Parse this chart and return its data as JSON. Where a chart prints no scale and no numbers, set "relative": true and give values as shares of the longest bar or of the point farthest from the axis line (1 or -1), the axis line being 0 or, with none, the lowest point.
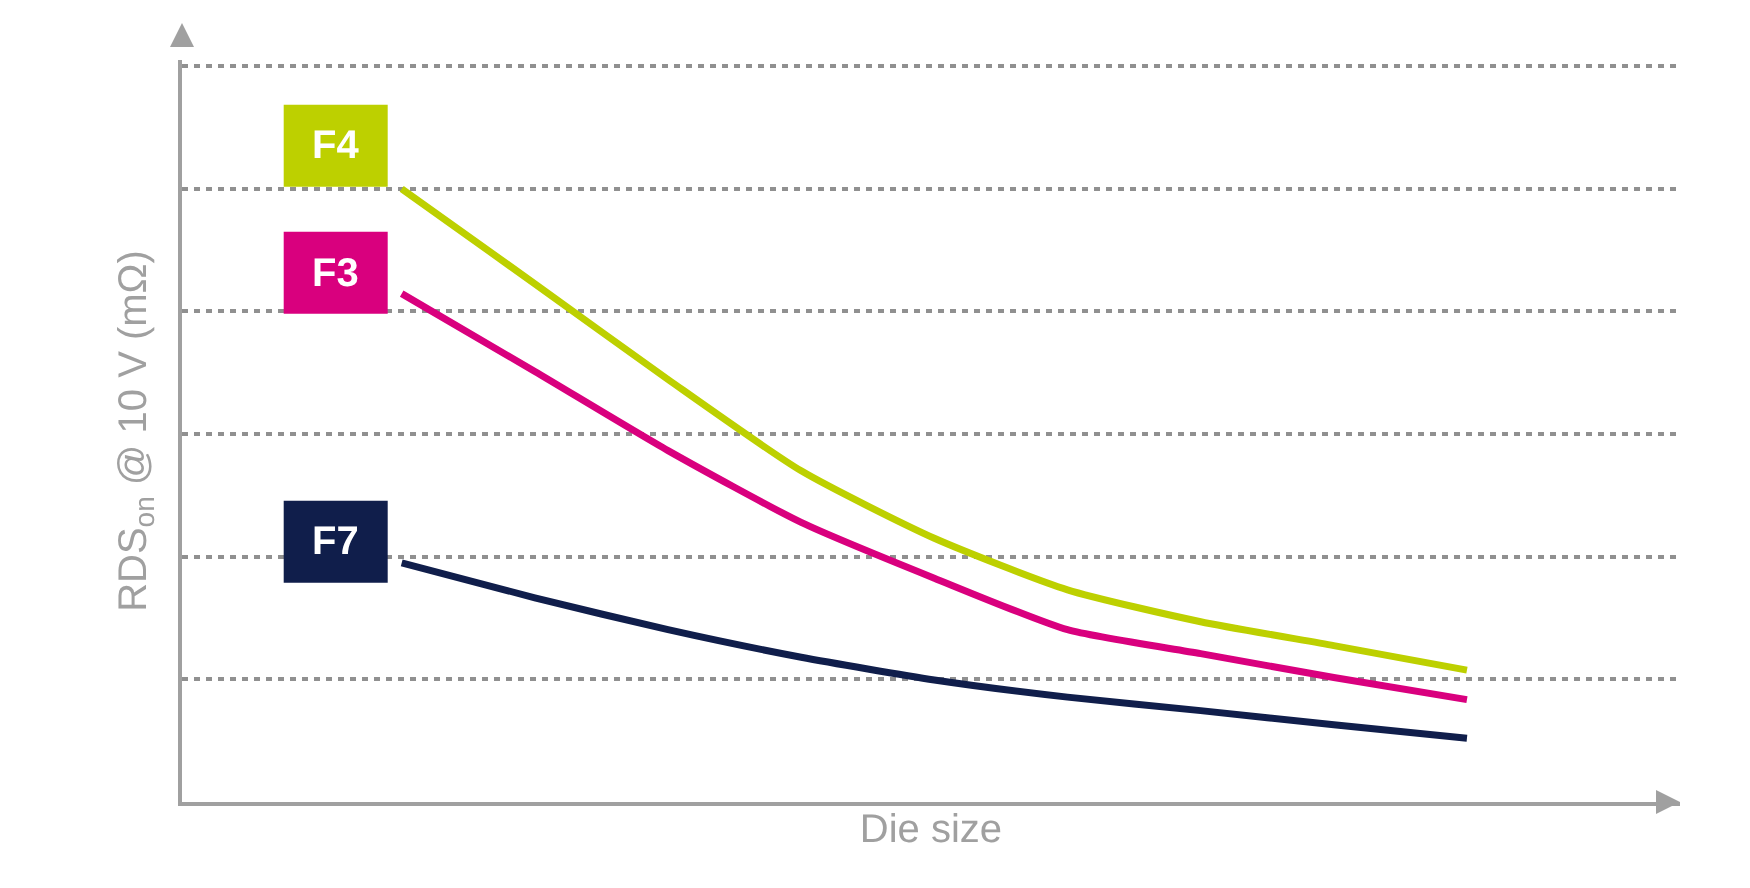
{
  "chart_data": {
    "type": "line",
    "relative": true,
    "xlabel": "Die size",
    "ylabel": "RDS$_{on}$ @ 10 V (mΩ)",
    "grid": "y",
    "line_style": "solid",
    "marker": "none",
    "legend": "left",
    "tick_labels": false,
    "categories": [
      null,
      null,
      null,
      null,
      null,
      null,
      null,
      null,
      null
    ],
    "series": [
      {
        "name": "F4",
        "color": "#bdd000",
        "values": [
          1,
          0.845,
          0.689,
          0.54,
          0.43,
          0.346,
          0.294,
          0.255,
          0.215
        ]
      },
      {
        "name": "F3",
        "color": "#d9007e",
        "values": [
          0.829,
          0.702,
          0.573,
          0.456,
          0.365,
          0.281,
          0.242,
          0.203,
          0.167
        ]
      },
      {
        "name": "F7",
        "color": "#101e4b",
        "values": [
          0.39,
          0.333,
          0.281,
          0.236,
          0.199,
          0.171,
          0.149,
          0.126,
          0.104
        ]
      }
    ]
  }
}
